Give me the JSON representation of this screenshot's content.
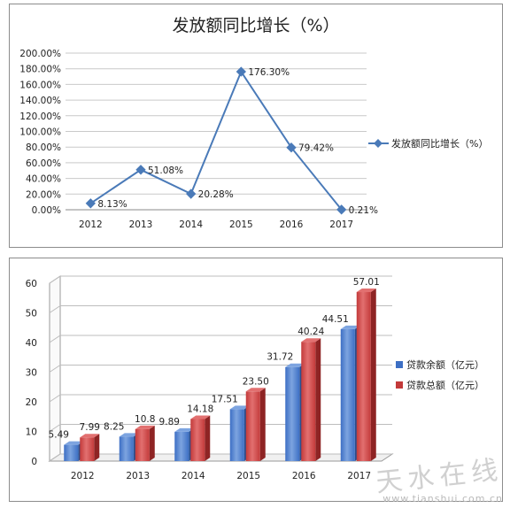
{
  "chart_data": [
    {
      "type": "line",
      "title": "发放额同比增长（%）",
      "categories": [
        "2012",
        "2013",
        "2014",
        "2015",
        "2016",
        "2017"
      ],
      "series": [
        {
          "name": "发放额同比增长（%）",
          "values": [
            8.13,
            51.08,
            20.28,
            176.3,
            79.42,
            0.21
          ],
          "labels": [
            "8.13%",
            "51.08%",
            "20.28%",
            "176.30%",
            "79.42%",
            "0.21%"
          ]
        }
      ],
      "ylim": [
        0,
        200
      ],
      "yticks": [
        "0.00%",
        "20.00%",
        "40.00%",
        "60.00%",
        "80.00%",
        "100.00%",
        "120.00%",
        "140.00%",
        "160.00%",
        "180.00%",
        "200.00%"
      ],
      "grid": true,
      "legend_position": "right",
      "color": "#4a7ab8"
    },
    {
      "type": "bar",
      "title": "",
      "categories": [
        "2012",
        "2013",
        "2014",
        "2015",
        "2016",
        "2017"
      ],
      "series": [
        {
          "name": "贷款余额（亿元）",
          "values": [
            5.49,
            8.25,
            9.89,
            17.51,
            31.72,
            44.51
          ],
          "labels": [
            "5.49",
            "8.25",
            "9.89",
            "17.51",
            "31.72",
            "44.51"
          ],
          "color": "#3d6fc4"
        },
        {
          "name": "贷款总额（亿元）",
          "values": [
            7.99,
            10.8,
            14.18,
            23.5,
            40.24,
            57.01
          ],
          "labels": [
            "7.99",
            "10.8",
            "14.18",
            "23.50",
            "40.24",
            "57.01"
          ],
          "color": "#c33a3a"
        }
      ],
      "ylim": [
        0,
        60
      ],
      "yticks": [
        "0",
        "10",
        "20",
        "30",
        "40",
        "50",
        "60"
      ],
      "grid": true,
      "legend_position": "right"
    }
  ],
  "watermark": {
    "main": "天水在线",
    "url": "www.tianshui.com.cn"
  }
}
